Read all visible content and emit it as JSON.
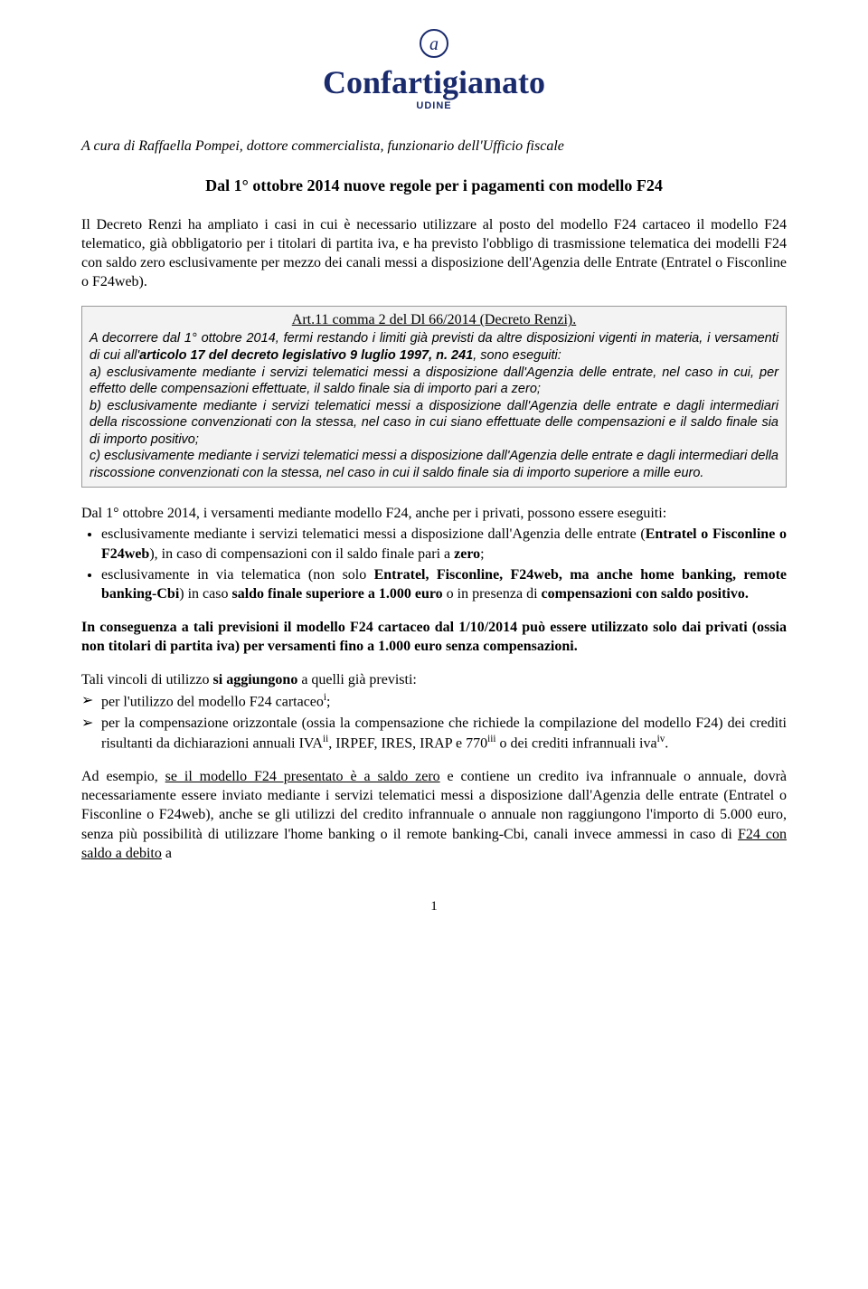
{
  "logo": {
    "word": "Confartigianato",
    "sub": "UDINE",
    "mark_color": "#1a2b6d"
  },
  "author_line": "A cura di Raffaella Pompei, dottore commercialista, funzionario dell'Ufficio fiscale",
  "title": "Dal 1° ottobre 2014 nuove regole per i pagamenti con  modello  F24",
  "intro": "Il Decreto Renzi ha ampliato i casi in cui è necessario utilizzare al posto del modello F24  cartaceo il modello F24 telematico, già obbligatorio per i titolari di partita iva, e ha previsto l'obbligo di trasmissione telematica dei modelli F24 con saldo zero esclusivamente per mezzo  dei canali messi a disposizione dell'Agenzia delle Entrate (Entratel o Fisconline o F24web).",
  "law_title": "Art.11 comma 2 del Dl 66/2014 (Decreto Renzi).",
  "law_body_pre": "A decorrere dal 1° ottobre 2014, fermi restando i limiti già previsti da altre disposizioni vigenti in materia, i versamenti di cui all'",
  "law_body_ref": "articolo 17 del decreto legislativo 9 luglio 1997, n. 241",
  "law_body_post": ", sono eseguiti:\na) esclusivamente mediante i servizi telematici messi a disposizione dall'Agenzia delle entrate, nel caso in cui, per effetto delle compensazioni effettuate, il saldo finale sia di importo pari a zero;\nb) esclusivamente mediante i servizi telematici messi a disposizione dall'Agenzia delle entrate e dagli intermediari della riscossione convenzionati con la stessa, nel caso in cui siano effettuate delle compensazioni e il saldo finale sia di importo positivo;\nc) esclusivamente mediante i servizi telematici messi a disposizione dall'Agenzia delle entrate e dagli intermediari della riscossione convenzionati con la stessa, nel caso in cui il saldo finale sia di importo superiore a mille euro.",
  "after_box_lead": "Dal 1° ottobre 2014, i versamenti mediante modello F24, anche per i privati, possono essere eseguiti:",
  "bullets": [
    "esclusivamente mediante i servizi telematici messi a disposizione dall'Agenzia delle entrate (<span class=\"b\">Entratel o Fisconline o F24web</span>), in caso di compensazioni con il saldo finale pari a <span class=\"b\">zero</span>;",
    "esclusivamente in via telematica (non solo <span class=\"b\">Entratel,  Fisconline, F24web, ma anche home banking, remote banking-Cbi</span>) in caso <span class=\"b\">saldo finale superiore a 1.000 euro</span> o in presenza di <span class=\"b\">compensazioni con saldo positivo.</span>"
  ],
  "consequence": "In conseguenza a tali previsioni il modello F24 cartaceo dal 1/10/2014 può essere utilizzato solo dai privati (ossia non titolari di partita iva) per  versamenti fino a 1.000 euro senza compensazioni.",
  "vincoli_lead": "Tali vincoli di utilizzo <span class=\"b\">si aggiungono</span> a quelli già previsti:",
  "chev_items": [
    "per l'utilizzo del modello F24 cartaceo<sup>i</sup>;",
    "per la compensazione orizzontale (ossia la compensazione che richiede la compilazione del modello F24) dei crediti risultanti da dichiarazioni annuali IVA<sup>ii</sup>, IRPEF, IRES, IRAP e 770<sup>iii</sup> o dei crediti infrannuali iva<sup>iv</sup>."
  ],
  "example": "Ad esempio, <span class=\"u\">se il modello F24 presentato è a saldo zero</span> e contiene un credito iva infrannuale  o annuale, dovrà necessariamente essere inviato  mediante i servizi telematici messi a disposizione dall'Agenzia delle entrate (Entratel o Fisconline o F24web), anche se gli utilizzi del  credito infrannuale o annuale  non raggiungono l'importo di 5.000 euro, senza più possibilità di utilizzare l'home banking o il remote banking-Cbi, canali invece ammessi in caso di <span class=\"u\">F24 con saldo a debito</span> a",
  "page_number": "1"
}
